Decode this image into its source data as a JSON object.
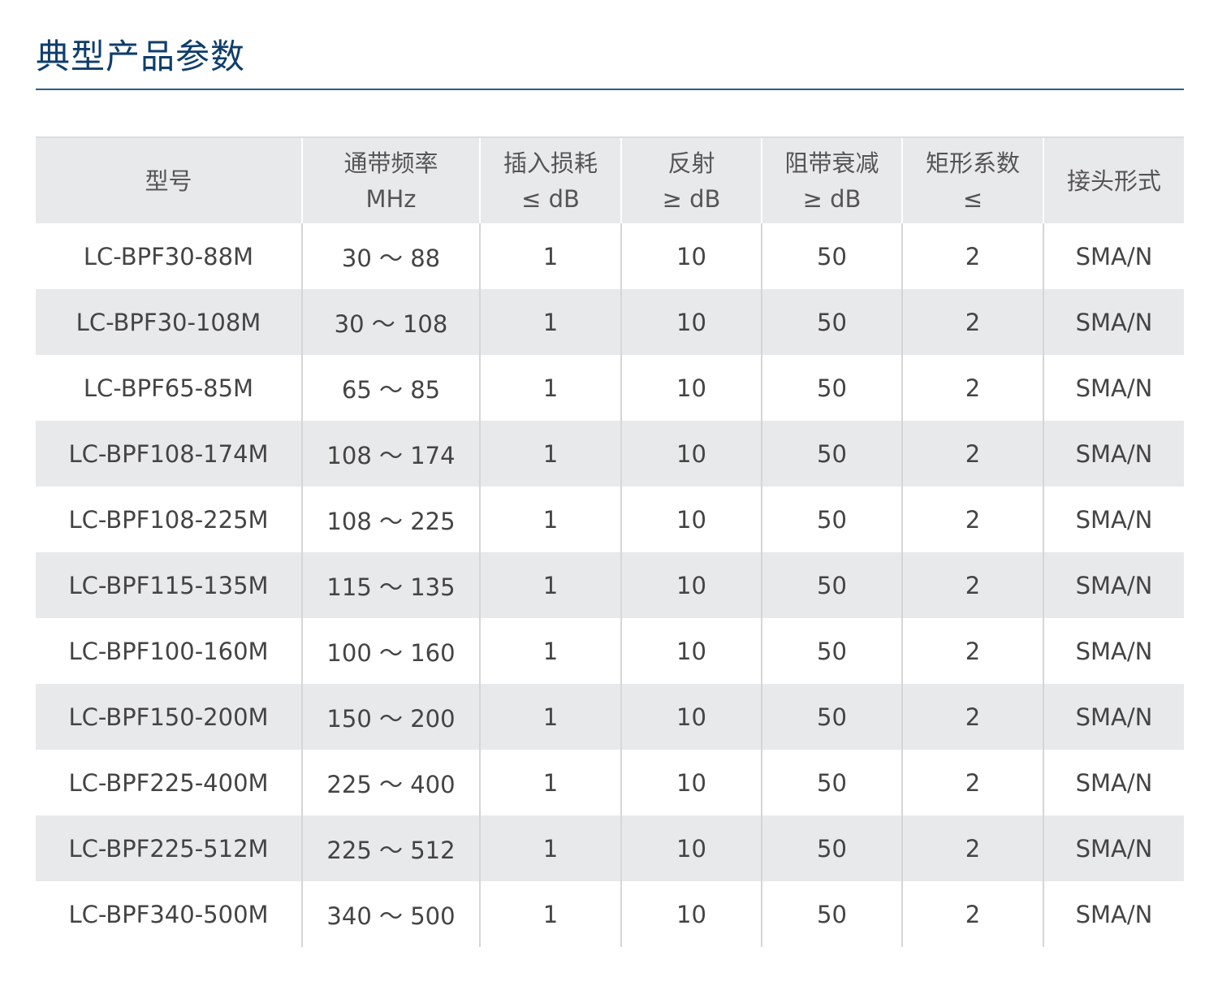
{
  "title": "典型产品参数",
  "table": {
    "headers": [
      [
        "型号"
      ],
      [
        "通带频率",
        "MHz"
      ],
      [
        "插入损耗",
        "≤ dB"
      ],
      [
        "反射",
        "≥ dB"
      ],
      [
        "阻带衰减",
        "≥ dB"
      ],
      [
        "矩形系数",
        "≤"
      ],
      [
        "接头形式"
      ]
    ],
    "rows": [
      [
        "LC-BPF30-88M",
        "30 ～ 88",
        "1",
        "10",
        "50",
        "2",
        "SMA/N"
      ],
      [
        "LC-BPF30-108M",
        "30 ～ 108",
        "1",
        "10",
        "50",
        "2",
        "SMA/N"
      ],
      [
        "LC-BPF65-85M",
        "65 ～ 85",
        "1",
        "10",
        "50",
        "2",
        "SMA/N"
      ],
      [
        "LC-BPF108-174M",
        "108 ～ 174",
        "1",
        "10",
        "50",
        "2",
        "SMA/N"
      ],
      [
        "LC-BPF108-225M",
        "108 ～ 225",
        "1",
        "10",
        "50",
        "2",
        "SMA/N"
      ],
      [
        "LC-BPF115-135M",
        "115 ～ 135",
        "1",
        "10",
        "50",
        "2",
        "SMA/N"
      ],
      [
        "LC-BPF100-160M",
        "100 ～ 160",
        "1",
        "10",
        "50",
        "2",
        "SMA/N"
      ],
      [
        "LC-BPF150-200M",
        "150 ～ 200",
        "1",
        "10",
        "50",
        "2",
        "SMA/N"
      ],
      [
        "LC-BPF225-400M",
        "225 ～ 400",
        "1",
        "10",
        "50",
        "2",
        "SMA/N"
      ],
      [
        "LC-BPF225-512M",
        "225 ～ 512",
        "1",
        "10",
        "50",
        "2",
        "SMA/N"
      ],
      [
        "LC-BPF340-500M",
        "340 ～ 500",
        "1",
        "10",
        "50",
        "2",
        "SMA/N"
      ]
    ]
  },
  "colors": {
    "title": "#0f3e6c",
    "rule": "#2b5c8a",
    "stripe": "#e8e9eb"
  }
}
